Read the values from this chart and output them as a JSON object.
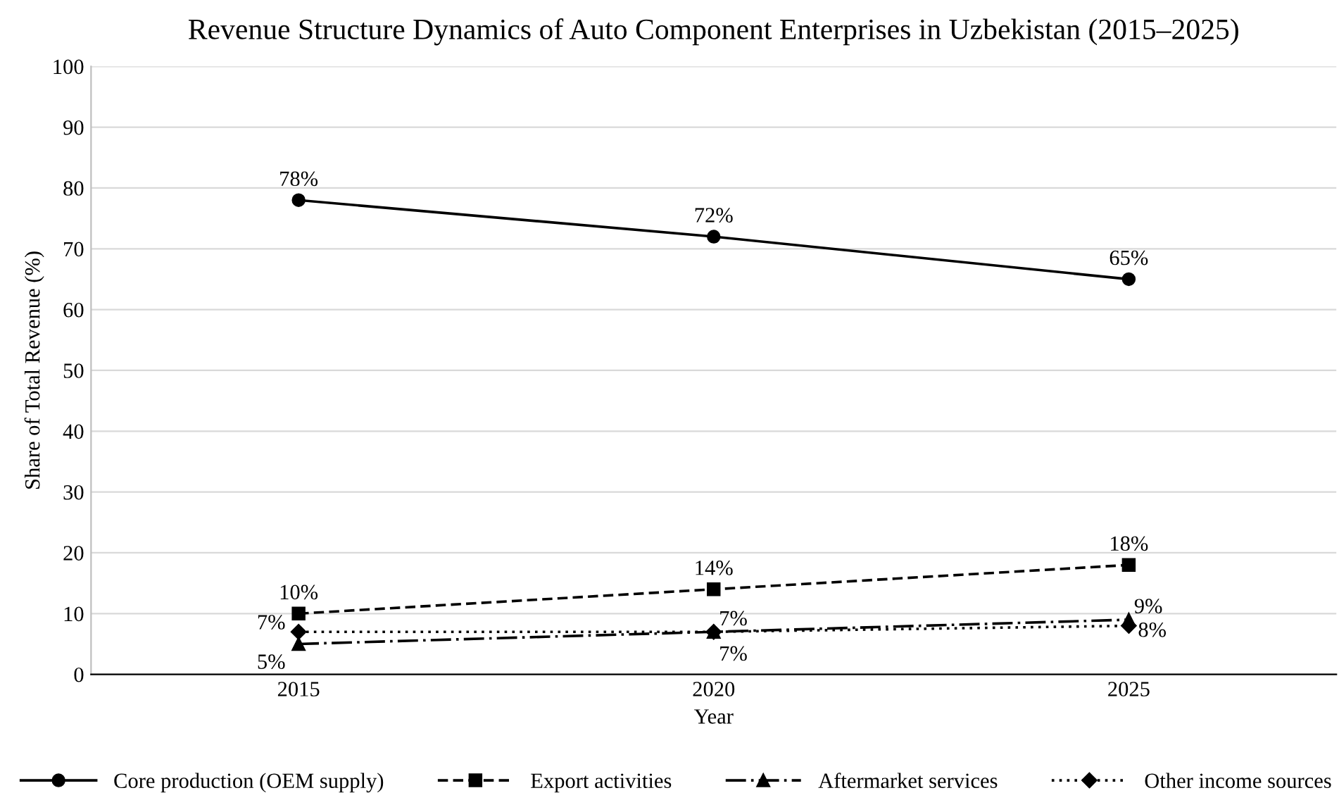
{
  "chart_data": {
    "type": "line",
    "title": "Revenue Structure Dynamics of Auto Component Enterprises in Uzbekistan (2015–2025)",
    "xlabel": "Year",
    "ylabel": "Share of Total Revenue (%)",
    "categories": [
      "2015",
      "2020",
      "2025"
    ],
    "series": [
      {
        "name": "Core production (OEM supply)",
        "color": "#000000",
        "values": [
          78,
          72,
          65
        ],
        "marker": "circle",
        "line_style": "solid",
        "value_labels": [
          "78%",
          "72%",
          "65%"
        ]
      },
      {
        "name": "Export activities",
        "color": "#000000",
        "values": [
          10,
          14,
          18
        ],
        "marker": "square",
        "line_style": "dashed",
        "value_labels": [
          "10%",
          "14%",
          "18%"
        ]
      },
      {
        "name": "Aftermarket services",
        "color": "#000000",
        "values": [
          5,
          7,
          9
        ],
        "marker": "triangle",
        "line_style": "dashdot",
        "value_labels": [
          "5%",
          "7%",
          "9%"
        ]
      },
      {
        "name": "Other income sources",
        "color": "#000000",
        "values": [
          7,
          7,
          8
        ],
        "marker": "diamond",
        "line_style": "dotted",
        "value_labels": [
          "7%",
          "7%",
          "8%"
        ]
      }
    ],
    "ylim": [
      0,
      100
    ],
    "yticks": [
      0,
      10,
      20,
      30,
      40,
      50,
      60,
      70,
      80,
      90,
      100
    ],
    "grid": "y",
    "legend": "bottom"
  }
}
